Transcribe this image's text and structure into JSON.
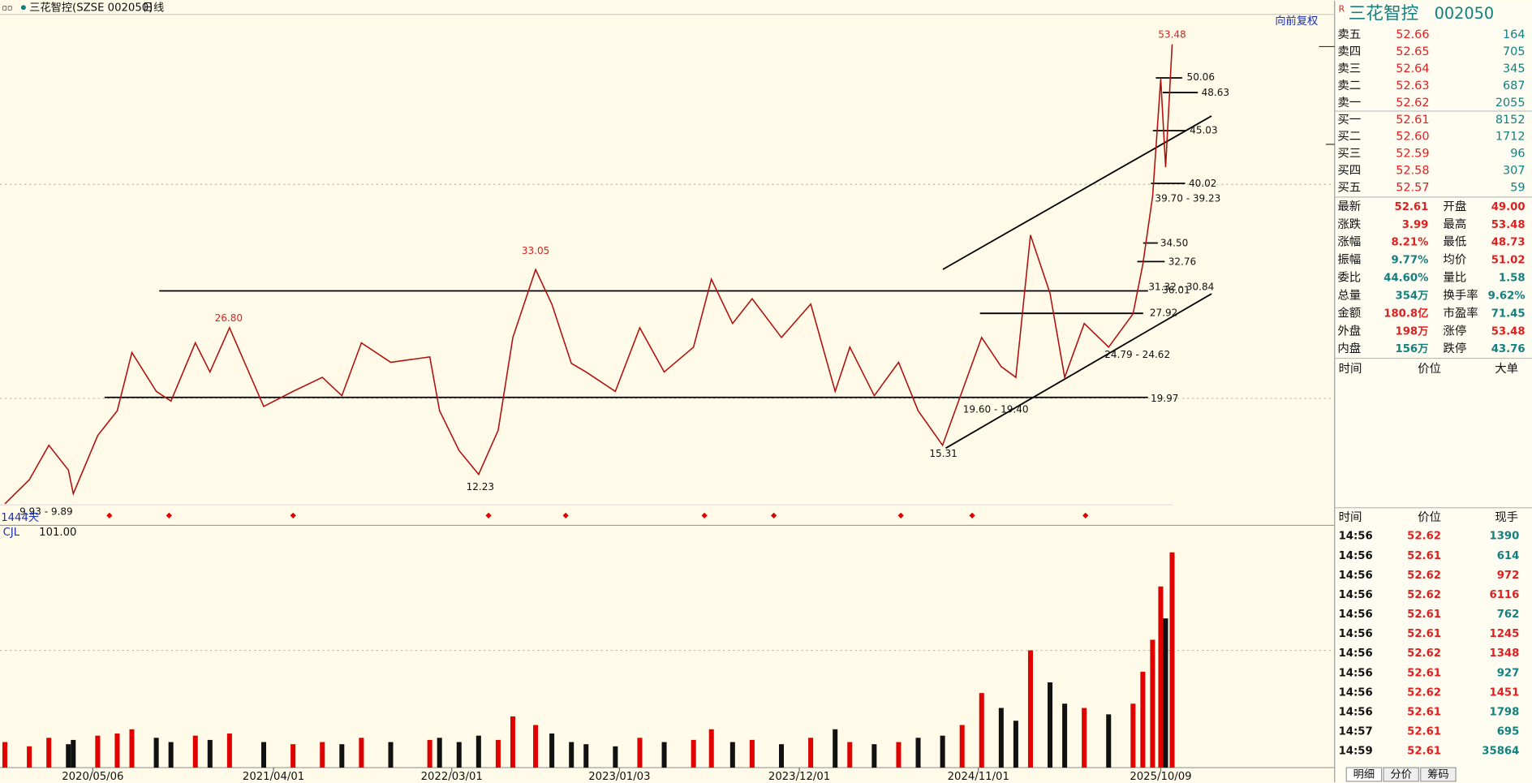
{
  "toolbar": {
    "symbol": "三花智控(SZSE 002050)",
    "period": "日线",
    "adjust": "向前复权"
  },
  "chart_data": [
    {
      "type": "line",
      "period_label": "1444天",
      "color": "#b01010",
      "x": [
        6,
        36,
        60,
        84,
        90,
        120,
        144,
        162,
        192,
        210,
        240,
        258,
        282,
        324,
        360,
        396,
        420,
        444,
        480,
        528,
        540,
        564,
        588,
        612,
        630,
        658,
        678,
        702,
        720,
        756,
        786,
        816,
        852,
        874,
        900,
        924,
        960,
        996,
        1026,
        1044,
        1074,
        1104,
        1128,
        1158,
        1182,
        1206,
        1230,
        1248,
        1266,
        1290,
        1308,
        1332,
        1362,
        1392,
        1404,
        1416,
        1426,
        1432,
        1440
      ],
      "values": [
        9.96,
        12.2,
        15.4,
        13.1,
        10.9,
        16.3,
        18.6,
        24.0,
        20.4,
        19.5,
        24.9,
        22.2,
        26.3,
        19.0,
        20.4,
        21.7,
        20.0,
        24.9,
        23.1,
        23.6,
        18.6,
        14.9,
        12.7,
        16.8,
        25.4,
        31.7,
        28.5,
        23.0,
        22.2,
        20.4,
        26.3,
        22.2,
        24.5,
        30.8,
        26.7,
        29.0,
        25.4,
        28.5,
        20.4,
        24.5,
        20.0,
        23.1,
        18.6,
        15.4,
        20.4,
        25.4,
        22.7,
        21.7,
        34.9,
        29.5,
        21.7,
        26.7,
        24.5,
        27.6,
        32.2,
        38.5,
        49.4,
        41.2,
        52.61
      ],
      "xlim": [
        0,
        1444
      ],
      "ylim": [
        9.78,
        55.29
      ],
      "xticks": [
        {
          "value": 114,
          "label": "2020/05/06"
        },
        {
          "value": 336,
          "label": "2021/04/01"
        },
        {
          "value": 555,
          "label": "2022/03/01"
        },
        {
          "value": 761,
          "label": "2023/01/03"
        },
        {
          "value": 982,
          "label": "2023/12/01"
        },
        {
          "value": 1202,
          "label": "2024/11/01"
        },
        {
          "value": 1426,
          "label": "2025/10/09"
        }
      ],
      "annotations": [
        {
          "label": "53.48",
          "x": 1440,
          "y": 53.48
        },
        {
          "label": "50.06",
          "x": 1434,
          "y": 50.06
        },
        {
          "label": "48.63",
          "x": 1440,
          "y": 48.63
        },
        {
          "label": "45.03",
          "x": 1434,
          "y": 45.03
        },
        {
          "label": "40.02",
          "x": 1434,
          "y": 40.02
        },
        {
          "label": "39.70 - 39.23",
          "x": 1419,
          "y": 39.7
        },
        {
          "label": "34.50",
          "x": 1411,
          "y": 34.5
        },
        {
          "label": "32.76",
          "x": 1404,
          "y": 32.76
        },
        {
          "label": "31.32 - 30.84",
          "x": 1411,
          "y": 31.32
        },
        {
          "label": "36.01",
          "x": 1411,
          "y": 36.01
        },
        {
          "label": "27.92",
          "x": 1392,
          "y": 27.92
        },
        {
          "label": "24.79 - 24.62",
          "x": 1357,
          "y": 24.79
        },
        {
          "label": "19.97",
          "x": 1410,
          "y": 19.97
        },
        {
          "label": "19.60 - 19.40",
          "x": 1183,
          "y": 19.6
        },
        {
          "label": "15.31",
          "x": 1159,
          "y": 15.31
        },
        {
          "label": "12.23",
          "x": 590,
          "y": 12.23
        },
        {
          "label": "9.93 - 9.89",
          "x": 6,
          "y": 9.93
        },
        {
          "label": "26.80",
          "x": 281,
          "y": 26.8
        },
        {
          "label": "33.05",
          "x": 658,
          "y": 33.05
        }
      ]
    },
    {
      "type": "bar",
      "title": "CJL",
      "indicator_value": "101.00",
      "ylim": [
        0,
        110
      ],
      "values": [
        12,
        10,
        14,
        11,
        13,
        15,
        16,
        18,
        14,
        12,
        15,
        13,
        16,
        12,
        11,
        12,
        11,
        14,
        12,
        13,
        14,
        12,
        15,
        13,
        24,
        20,
        16,
        12,
        11,
        10,
        14,
        12,
        13,
        18,
        12,
        13,
        11,
        14,
        18,
        12,
        11,
        12,
        14,
        15,
        20,
        35,
        28,
        22,
        55,
        40,
        30,
        28,
        25,
        30,
        45,
        60,
        85,
        70,
        101
      ]
    }
  ],
  "quote": {
    "flag": "R",
    "name": "三花智控",
    "code": "002050",
    "asks": [
      [
        "卖五",
        "52.66",
        "164"
      ],
      [
        "卖四",
        "52.65",
        "705"
      ],
      [
        "卖三",
        "52.64",
        "345"
      ],
      [
        "卖二",
        "52.63",
        "687"
      ],
      [
        "卖一",
        "52.62",
        "2055"
      ]
    ],
    "bids": [
      [
        "买一",
        "52.61",
        "8152"
      ],
      [
        "买二",
        "52.60",
        "1712"
      ],
      [
        "买三",
        "52.59",
        "96"
      ],
      [
        "买四",
        "52.58",
        "307"
      ],
      [
        "买五",
        "52.57",
        "59"
      ]
    ],
    "stats": [
      [
        "最新",
        "52.61",
        "开盘",
        "49.00"
      ],
      [
        "涨跌",
        "3.99",
        "最高",
        "53.48"
      ],
      [
        "涨幅",
        "8.21%",
        "最低",
        "48.73"
      ],
      [
        "振幅",
        "9.77%",
        "均价",
        "51.02"
      ],
      [
        "委比",
        "44.60%",
        "量比",
        "1.58"
      ],
      [
        "总量",
        "354万",
        "换手率",
        "9.62%"
      ],
      [
        "金额",
        "180.8亿",
        "市盈率",
        "71.45"
      ],
      [
        "外盘",
        "198万",
        "涨停",
        "53.48"
      ],
      [
        "内盘",
        "156万",
        "跌停",
        "43.76"
      ]
    ],
    "big_orders_header": [
      "时间",
      "价位",
      "大单"
    ],
    "ticks_header": [
      "时间",
      "价位",
      "现手"
    ],
    "ticks": [
      [
        "14:56",
        "52.62",
        "1390"
      ],
      [
        "14:56",
        "52.61",
        "614"
      ],
      [
        "14:56",
        "52.62",
        "972"
      ],
      [
        "14:56",
        "52.62",
        "6116"
      ],
      [
        "14:56",
        "52.61",
        "762"
      ],
      [
        "14:56",
        "52.61",
        "1245"
      ],
      [
        "14:56",
        "52.62",
        "1348"
      ],
      [
        "14:56",
        "52.61",
        "927"
      ],
      [
        "14:56",
        "52.62",
        "1451"
      ],
      [
        "14:56",
        "52.61",
        "1798"
      ],
      [
        "14:57",
        "52.61",
        "695"
      ],
      [
        "14:59",
        "52.61",
        "35864"
      ]
    ],
    "tabs": [
      "明细",
      "分价",
      "筹码"
    ]
  }
}
